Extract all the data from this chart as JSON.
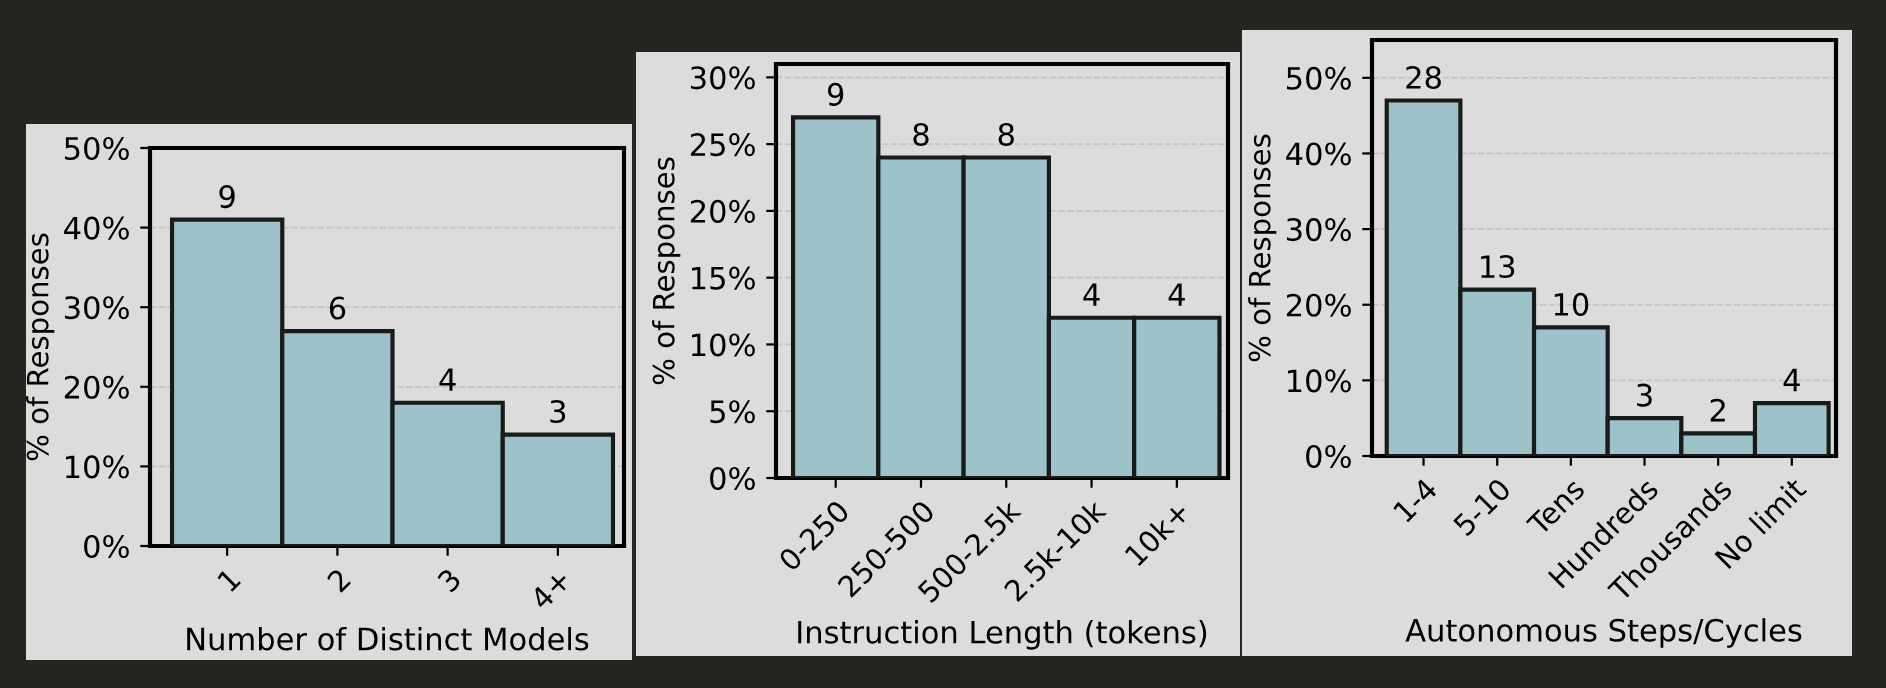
{
  "chart_data": [
    {
      "type": "bar",
      "xlabel": "Number of Distinct Models",
      "ylabel": "% of Responses",
      "categories": [
        "1",
        "2",
        "3",
        "4+"
      ],
      "values": [
        41,
        27,
        18,
        14
      ],
      "color": "#9ec2c9",
      "ylim": [
        0,
        50
      ],
      "yticks": [
        {
          "value": 0,
          "label": "0%"
        },
        {
          "value": 10,
          "label": "10%"
        },
        {
          "value": 20,
          "label": "20%"
        },
        {
          "value": 30,
          "label": "30%"
        },
        {
          "value": 40,
          "label": "40%"
        },
        {
          "value": 50,
          "label": "50%"
        }
      ],
      "grid": "y",
      "annotations": [
        {
          "text": "9",
          "x": "1",
          "y": 41
        },
        {
          "text": "6",
          "x": "2",
          "y": 27
        },
        {
          "text": "4",
          "x": "3",
          "y": 18
        },
        {
          "text": "3",
          "x": "4+",
          "y": 14
        }
      ]
    },
    {
      "type": "bar",
      "xlabel": "Instruction Length (tokens)",
      "ylabel": "% of Responses",
      "categories": [
        "0-250",
        "250-500",
        "500-2.5k",
        "2.5k-10k",
        "10k+"
      ],
      "values": [
        27,
        24,
        24,
        12,
        12
      ],
      "color": "#9ec2c9",
      "ylim": [
        0,
        31
      ],
      "yticks": [
        {
          "value": 0,
          "label": "0%"
        },
        {
          "value": 5,
          "label": "5%"
        },
        {
          "value": 10,
          "label": "10%"
        },
        {
          "value": 15,
          "label": "15%"
        },
        {
          "value": 20,
          "label": "20%"
        },
        {
          "value": 25,
          "label": "25%"
        },
        {
          "value": 30,
          "label": "30%"
        }
      ],
      "grid": "y",
      "annotations": [
        {
          "text": "9",
          "x": "0-250",
          "y": 27
        },
        {
          "text": "8",
          "x": "250-500",
          "y": 24
        },
        {
          "text": "8",
          "x": "500-2.5k",
          "y": 24
        },
        {
          "text": "4",
          "x": "2.5k-10k",
          "y": 12
        },
        {
          "text": "4",
          "x": "10k+",
          "y": 12
        }
      ]
    },
    {
      "type": "bar",
      "xlabel": "Autonomous Steps/Cycles",
      "ylabel": "% of Responses",
      "categories": [
        "1-4",
        "5-10",
        "Tens",
        "Hundreds",
        "Thousands",
        "No limit"
      ],
      "values": [
        47,
        22,
        17,
        5,
        3,
        7
      ],
      "color": "#9ec2c9",
      "ylim": [
        0,
        55
      ],
      "yticks": [
        {
          "value": 0,
          "label": "0%"
        },
        {
          "value": 10,
          "label": "10%"
        },
        {
          "value": 20,
          "label": "20%"
        },
        {
          "value": 30,
          "label": "30%"
        },
        {
          "value": 40,
          "label": "40%"
        },
        {
          "value": 50,
          "label": "50%"
        }
      ],
      "grid": "y",
      "annotations": [
        {
          "text": "28",
          "x": "1-4",
          "y": 47
        },
        {
          "text": "13",
          "x": "5-10",
          "y": 22
        },
        {
          "text": "10",
          "x": "Tens",
          "y": 17
        },
        {
          "text": "3",
          "x": "Hundreds",
          "y": 5
        },
        {
          "text": "2",
          "x": "Thousands",
          "y": 3
        },
        {
          "text": "4",
          "x": "No limit",
          "y": 7
        }
      ]
    }
  ]
}
